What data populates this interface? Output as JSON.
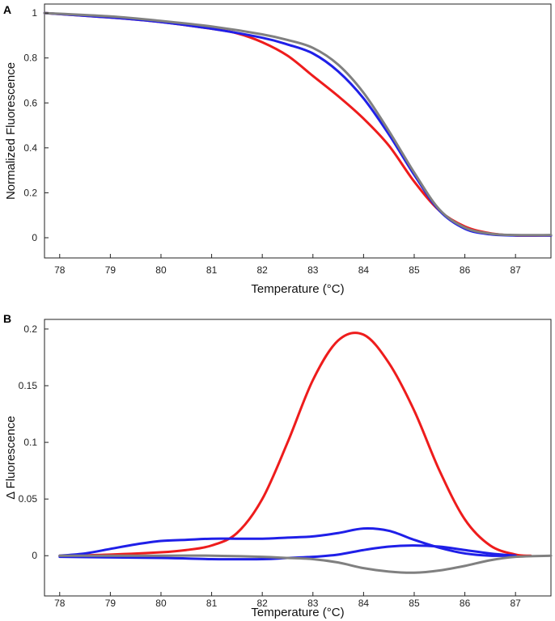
{
  "chart_data": [
    {
      "panel": "A",
      "type": "line",
      "xlabel": "Temperature (°C)",
      "ylabel": "Normalized Fluorescence",
      "xlim": [
        77.7,
        87.7
      ],
      "ylim": [
        -0.09,
        1.04
      ],
      "xticks": [
        78,
        79,
        80,
        81,
        82,
        83,
        84,
        85,
        86,
        87
      ],
      "yticks": [
        0,
        0.2,
        0.4,
        0.6,
        0.8,
        1
      ],
      "ytick_labels": [
        "0",
        "0.2",
        "0.4",
        "0.6",
        "0.8",
        "1"
      ],
      "series": [
        {
          "name": "red",
          "color": "#ee1c1c",
          "x": [
            77.7,
            79,
            80,
            81,
            81.5,
            82,
            82.5,
            83,
            83.5,
            84,
            84.5,
            85,
            85.5,
            86,
            86.5,
            87,
            87.7
          ],
          "y": [
            1.0,
            0.98,
            0.96,
            0.93,
            0.91,
            0.87,
            0.81,
            0.72,
            0.63,
            0.53,
            0.41,
            0.25,
            0.12,
            0.05,
            0.02,
            0.01,
            0.01
          ]
        },
        {
          "name": "blue",
          "color": "#1f1fe8",
          "x": [
            77.7,
            79,
            80,
            81,
            82,
            82.5,
            83,
            83.5,
            84,
            84.5,
            85,
            85.5,
            86,
            86.5,
            87,
            87.7
          ],
          "y": [
            1.0,
            0.98,
            0.96,
            0.93,
            0.89,
            0.86,
            0.82,
            0.74,
            0.62,
            0.46,
            0.28,
            0.12,
            0.04,
            0.015,
            0.01,
            0.01
          ]
        },
        {
          "name": "grey",
          "color": "#808080",
          "x": [
            77.7,
            79,
            80,
            81,
            82,
            82.5,
            83,
            83.5,
            84,
            84.5,
            85,
            85.5,
            86,
            86.5,
            87,
            87.7
          ],
          "y": [
            1.0,
            0.985,
            0.965,
            0.94,
            0.905,
            0.88,
            0.845,
            0.77,
            0.645,
            0.475,
            0.29,
            0.125,
            0.045,
            0.018,
            0.012,
            0.012
          ]
        }
      ]
    },
    {
      "panel": "B",
      "type": "line",
      "xlabel": "Temperature (°C)",
      "ylabel": "Δ Fluorescence",
      "xlim": [
        77.7,
        87.7
      ],
      "ylim": [
        -0.0355,
        0.2085
      ],
      "xticks": [
        78,
        79,
        80,
        81,
        82,
        83,
        84,
        85,
        86,
        87
      ],
      "yticks": [
        0,
        0.05,
        0.1,
        0.15,
        0.2
      ],
      "ytick_labels": [
        "0",
        "0.05",
        "0.1",
        "0.15",
        "0.2"
      ],
      "series": [
        {
          "name": "red",
          "color": "#ee1c1c",
          "x": [
            78,
            79,
            80,
            80.5,
            81,
            81.5,
            82,
            82.5,
            83,
            83.5,
            84,
            84.5,
            85,
            85.5,
            86,
            86.5,
            87,
            87.3
          ],
          "y": [
            0,
            0.001,
            0.003,
            0.005,
            0.009,
            0.02,
            0.05,
            0.1,
            0.155,
            0.19,
            0.195,
            0.17,
            0.128,
            0.075,
            0.032,
            0.009,
            0.001,
            0
          ]
        },
        {
          "name": "blue 1",
          "color": "#1f1fe8",
          "x": [
            78,
            78.5,
            79,
            79.5,
            80,
            80.5,
            81,
            81.5,
            82,
            82.5,
            83,
            83.5,
            84,
            84.5,
            85,
            85.5,
            86,
            86.5,
            87
          ],
          "y": [
            0,
            0.002,
            0.006,
            0.01,
            0.013,
            0.014,
            0.015,
            0.015,
            0.015,
            0.016,
            0.017,
            0.02,
            0.024,
            0.022,
            0.014,
            0.007,
            0.002,
            0,
            0
          ]
        },
        {
          "name": "blue 2",
          "color": "#1f1fe8",
          "x": [
            78,
            80,
            81,
            82,
            82.5,
            83,
            83.5,
            84,
            84.5,
            85,
            85.5,
            86,
            86.5,
            87
          ],
          "y": [
            -0.001,
            -0.002,
            -0.003,
            -0.003,
            -0.002,
            -0.001,
            0.001,
            0.005,
            0.008,
            0.009,
            0.008,
            0.005,
            0.002,
            0
          ]
        },
        {
          "name": "grey",
          "color": "#808080",
          "x": [
            78,
            80,
            81,
            82,
            82.5,
            83,
            83.5,
            84,
            84.5,
            85,
            85.5,
            86,
            86.5,
            87,
            87.7
          ],
          "y": [
            0,
            0,
            0,
            -0.001,
            -0.002,
            -0.003,
            -0.006,
            -0.011,
            -0.014,
            -0.015,
            -0.013,
            -0.009,
            -0.004,
            -0.001,
            0
          ]
        }
      ]
    }
  ]
}
